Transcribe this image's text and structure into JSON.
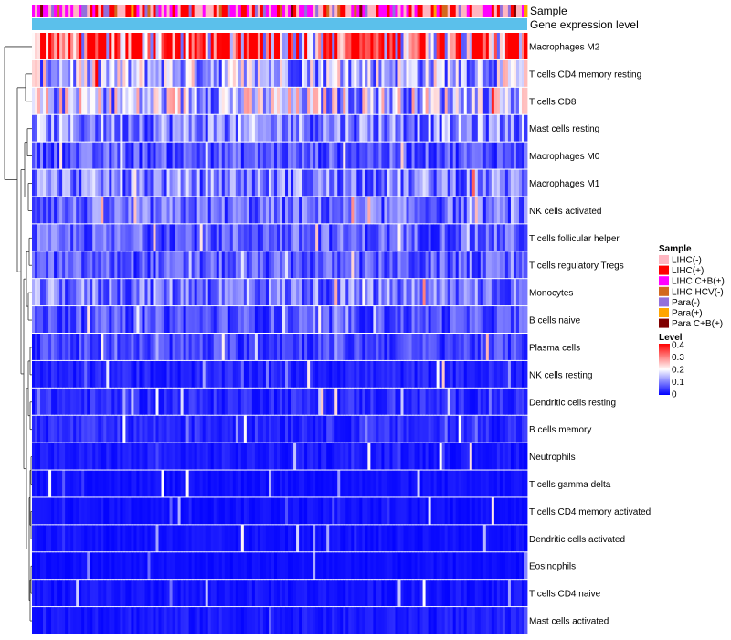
{
  "chart_data": {
    "type": "heatmap",
    "title": "",
    "annotation_tracks": [
      "Sample",
      "Gene expression level"
    ],
    "rows": [
      {
        "name": "Macrophages M2",
        "mean": 0.26
      },
      {
        "name": "T cells CD4 memory resting",
        "mean": 0.11
      },
      {
        "name": "T cells CD8",
        "mean": 0.12
      },
      {
        "name": "Mast cells resting",
        "mean": 0.08
      },
      {
        "name": "Macrophages M0",
        "mean": 0.05
      },
      {
        "name": "Macrophages M1",
        "mean": 0.075
      },
      {
        "name": "NK cells activated",
        "mean": 0.06
      },
      {
        "name": "T cells follicular helper",
        "mean": 0.055
      },
      {
        "name": "T cells regulatory  Tregs",
        "mean": 0.05
      },
      {
        "name": "Monocytes",
        "mean": 0.07
      },
      {
        "name": "B cells naive",
        "mean": 0.045
      },
      {
        "name": "Plasma cells",
        "mean": 0.04
      },
      {
        "name": "NK cells resting",
        "mean": 0.02
      },
      {
        "name": "Dendritic cells resting",
        "mean": 0.025
      },
      {
        "name": "B cells memory",
        "mean": 0.025
      },
      {
        "name": "Neutrophils",
        "mean": 0.015
      },
      {
        "name": "T cells gamma delta",
        "mean": 0.01
      },
      {
        "name": "T cells CD4 memory activated",
        "mean": 0.01
      },
      {
        "name": "Dendritic cells activated",
        "mean": 0.01
      },
      {
        "name": "Eosinophils",
        "mean": 0.008
      },
      {
        "name": "T cells CD4 naive",
        "mean": 0.012
      },
      {
        "name": "Mast cells activated",
        "mean": 0.015
      }
    ],
    "n_samples": 540,
    "sample_legend": {
      "title": "Sample",
      "entries": [
        {
          "label": "LIHC(-)",
          "color": "#ffb6c1"
        },
        {
          "label": "LIHC(+)",
          "color": "#ff0000"
        },
        {
          "label": "LIHC C+B(+)",
          "color": "#ff00ff"
        },
        {
          "label": "LIHC HCV(-)",
          "color": "#d2691e"
        },
        {
          "label": "Para(-)",
          "color": "#9370db"
        },
        {
          "label": "Para(+)",
          "color": "#ffa500"
        },
        {
          "label": "Para C+B(+)",
          "color": "#800000"
        }
      ]
    },
    "level_legend": {
      "title": "Level",
      "ticks": [
        "0.4",
        "0.3",
        "0.2",
        "0.1",
        "0"
      ],
      "range": [
        0,
        0.4
      ],
      "colors": [
        "#0000ff",
        "#ffffff",
        "#ff0000"
      ]
    },
    "gene_expression_color": "#5bc0eb"
  }
}
